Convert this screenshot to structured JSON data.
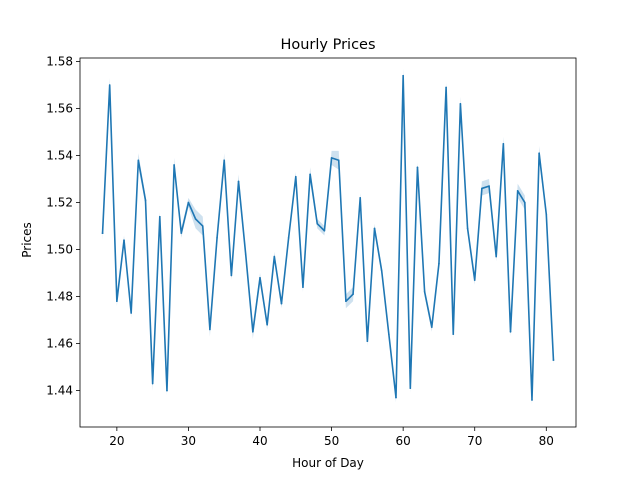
{
  "chart_data": {
    "type": "line",
    "title": "Hourly Prices",
    "xlabel": "Hour of Day",
    "ylabel": "Prices",
    "xlim": [
      14.85,
      84.15
    ],
    "ylim": [
      1.4245,
      1.5815
    ],
    "xticks": [
      20,
      30,
      40,
      50,
      60,
      70,
      80
    ],
    "yticks": [
      1.44,
      1.46,
      1.48,
      1.5,
      1.52,
      1.54,
      1.56,
      1.58
    ],
    "grid": false,
    "series": [
      {
        "color": "#1f77b4",
        "x": [
          18,
          19,
          20,
          21,
          22,
          23,
          24,
          25,
          26,
          27,
          28,
          29,
          30,
          31,
          32,
          33,
          34,
          35,
          36,
          37,
          38,
          39,
          40,
          41,
          42,
          43,
          44,
          45,
          46,
          47,
          48,
          49,
          50,
          51,
          52,
          53,
          54,
          55,
          56,
          57,
          58,
          59,
          60,
          61,
          62,
          63,
          64,
          65,
          66,
          67,
          68,
          69,
          70,
          71,
          72,
          73,
          74,
          75,
          76,
          77,
          78,
          79,
          80,
          81
        ],
        "y": [
          1.507,
          1.57,
          1.478,
          1.504,
          1.473,
          1.538,
          1.521,
          1.443,
          1.514,
          1.44,
          1.536,
          1.507,
          1.52,
          1.513,
          1.51,
          1.466,
          1.505,
          1.538,
          1.489,
          1.529,
          1.498,
          1.465,
          1.488,
          1.468,
          1.497,
          1.477,
          1.505,
          1.531,
          1.484,
          1.532,
          1.511,
          1.508,
          1.539,
          1.538,
          1.478,
          1.481,
          1.522,
          1.461,
          1.509,
          1.491,
          1.464,
          1.437,
          1.574,
          1.441,
          1.535,
          1.482,
          1.467,
          1.494,
          1.569,
          1.464,
          1.562,
          1.509,
          1.487,
          1.526,
          1.527,
          1.497,
          1.545,
          1.465,
          1.525,
          1.52,
          1.436,
          1.541,
          1.515,
          1.453
        ],
        "ci": [
          0.003,
          0.003,
          0.002,
          0.002,
          0.002,
          0.003,
          0.002,
          0.003,
          0.002,
          0.002,
          0.003,
          0.002,
          0.002,
          0.004,
          0.004,
          0.003,
          0.002,
          0.003,
          0.002,
          0.003,
          0.002,
          0.003,
          0.002,
          0.002,
          0.002,
          0.002,
          0.002,
          0.002,
          0.002,
          0.003,
          0.002,
          0.002,
          0.003,
          0.004,
          0.003,
          0.003,
          0.002,
          0.002,
          0.002,
          0.002,
          0.002,
          0.002,
          0.003,
          0.002,
          0.002,
          0.002,
          0.002,
          0.002,
          0.002,
          0.002,
          0.003,
          0.002,
          0.002,
          0.003,
          0.003,
          0.002,
          0.003,
          0.002,
          0.003,
          0.003,
          0.002,
          0.003,
          0.002,
          0.002
        ]
      }
    ]
  }
}
